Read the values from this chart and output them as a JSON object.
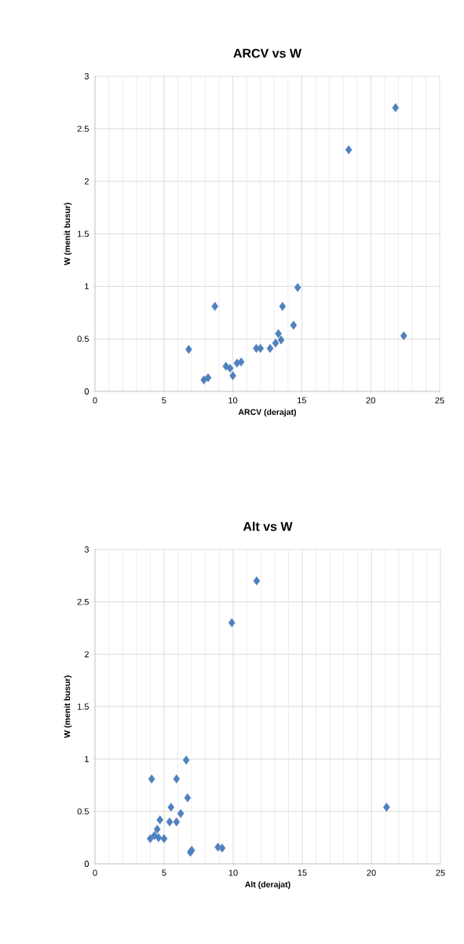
{
  "chart_data": [
    {
      "type": "scatter",
      "title": "ARCV vs W",
      "xlabel": "ARCV (derajat)",
      "ylabel": "W (menit busur)",
      "color": "#4f81bd",
      "marker": "diamond",
      "grid": true,
      "x": [
        6.8,
        7.9,
        8.2,
        8.7,
        9.5,
        9.8,
        10.0,
        10.3,
        10.6,
        11.7,
        12.0,
        12.7,
        13.1,
        13.3,
        13.5,
        13.6,
        14.4,
        14.7,
        18.4,
        21.8,
        22.4
      ],
      "values": [
        0.4,
        0.11,
        0.13,
        0.81,
        0.24,
        0.22,
        0.15,
        0.27,
        0.28,
        0.41,
        0.41,
        0.41,
        0.46,
        0.55,
        0.49,
        0.81,
        0.63,
        0.99,
        2.3,
        2.7,
        0.53
      ],
      "xlim": [
        0,
        25
      ],
      "ylim": [
        0,
        3
      ],
      "xticks": [
        0,
        5,
        10,
        15,
        20,
        25
      ],
      "yticks": [
        0,
        0.5,
        1,
        1.5,
        2,
        2.5,
        3
      ]
    },
    {
      "type": "scatter",
      "title": "Alt vs W",
      "xlabel": "Alt (derajat)",
      "ylabel": "W (menit busur)",
      "color": "#4f81bd",
      "marker": "diamond",
      "grid": true,
      "x": [
        4.0,
        4.3,
        4.6,
        4.1,
        4.5,
        4.7,
        5.0,
        5.5,
        5.4,
        5.9,
        5.9,
        6.2,
        6.6,
        6.7,
        6.9,
        7.0,
        8.9,
        9.2,
        9.9,
        11.7,
        21.1
      ],
      "values": [
        0.24,
        0.27,
        0.25,
        0.81,
        0.33,
        0.42,
        0.24,
        0.54,
        0.4,
        0.4,
        0.81,
        0.48,
        0.99,
        0.63,
        0.11,
        0.13,
        0.16,
        0.15,
        2.3,
        2.7,
        0.54
      ],
      "xlim": [
        0,
        25
      ],
      "ylim": [
        0,
        3
      ],
      "xticks": [
        0,
        5,
        10,
        15,
        20,
        25
      ],
      "yticks": [
        0,
        0.5,
        1,
        1.5,
        2,
        2.5,
        3
      ]
    }
  ]
}
